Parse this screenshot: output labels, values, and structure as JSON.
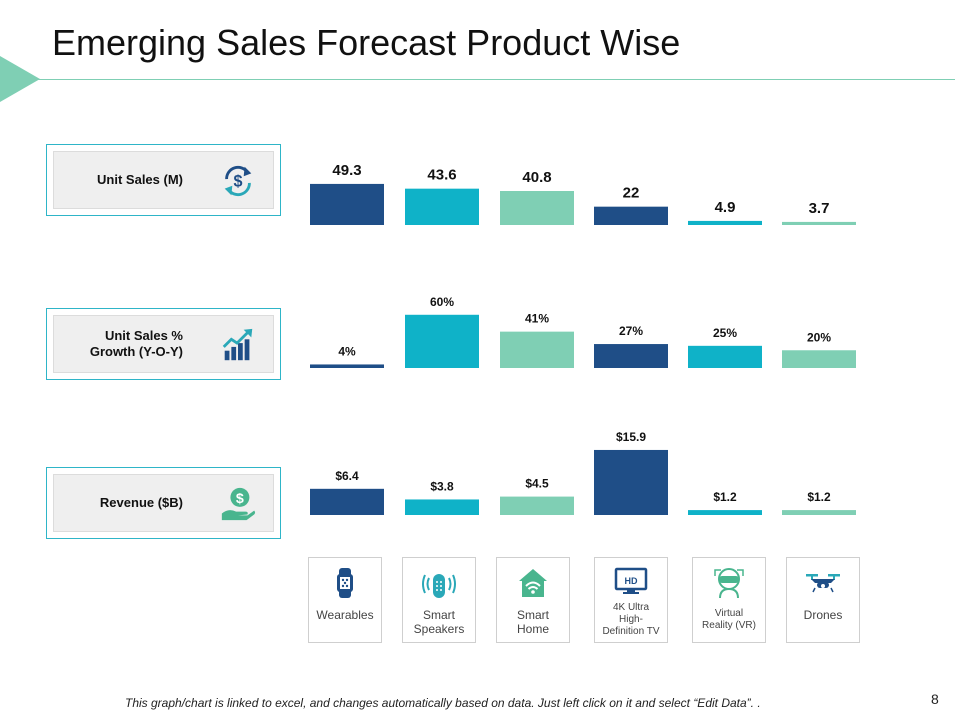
{
  "title": "Emerging Sales Forecast Product Wise",
  "rows": [
    {
      "label": "Unit Sales (M)",
      "icon": "dollar-cycle-icon"
    },
    {
      "label": "Unit Sales %\nGrowth (Y-O-Y)",
      "icon": "growth-chart-icon"
    },
    {
      "label": "Revenue ($B)",
      "icon": "hand-money-icon"
    }
  ],
  "categories": [
    {
      "label": "Wearables",
      "icon": "smartwatch-icon"
    },
    {
      "label": "Smart\nSpeakers",
      "icon": "smart-speaker-icon"
    },
    {
      "label": "Smart\nHome",
      "icon": "smart-home-icon"
    },
    {
      "label": "4K Ultra\nHigh-\nDefinition TV",
      "icon": "hd-tv-icon"
    },
    {
      "label": "Virtual\nReality (VR)",
      "icon": "vr-headset-icon"
    },
    {
      "label": "Drones",
      "icon": "drone-icon"
    }
  ],
  "chart_data": [
    {
      "type": "bar",
      "title": "Unit Sales (M)",
      "categories": [
        "Wearables",
        "Smart Speakers",
        "Smart Home",
        "4K Ultra High-Definition TV",
        "Virtual Reality (VR)",
        "Drones"
      ],
      "values": [
        49.3,
        43.6,
        40.8,
        22,
        4.9,
        3.7
      ],
      "labels": [
        "49.3",
        "43.6",
        "40.8",
        "22",
        "4.9",
        "3.7"
      ],
      "ylim": [
        0,
        120
      ]
    },
    {
      "type": "bar",
      "title": "Unit Sales % Growth (Y-O-Y)",
      "categories": [
        "Wearables",
        "Smart Speakers",
        "Smart Home",
        "4K Ultra High-Definition TV",
        "Virtual Reality (VR)",
        "Drones"
      ],
      "values": [
        4,
        60,
        41,
        27,
        25,
        20
      ],
      "labels": [
        "4%",
        "60%",
        "41%",
        "27%",
        "25%",
        "20%"
      ],
      "ylim": [
        0,
        115
      ]
    },
    {
      "type": "bar",
      "title": "Revenue ($B)",
      "categories": [
        "Wearables",
        "Smart Speakers",
        "Smart Home",
        "4K Ultra High-Definition TV",
        "Virtual Reality (VR)",
        "Drones"
      ],
      "values": [
        6.4,
        3.8,
        4.5,
        15.9,
        1.2,
        1.2
      ],
      "labels": [
        "$6.4",
        "$3.8",
        "$4.5",
        "$15.9",
        "$1.2",
        "$1.2"
      ],
      "ylim": [
        0,
        22
      ]
    }
  ],
  "colors": {
    "series": [
      "#1f4e87",
      "#0fb2c8",
      "#7fcfb4",
      "#1f4e87",
      "#0fb2c8",
      "#7fcfb4"
    ],
    "accent": "#7fcfb4",
    "border": "#2eb5c8",
    "icon_blue": "#1f4e87",
    "icon_teal": "#2aa8b8",
    "icon_green": "#49b58e"
  },
  "footer": {
    "note": "This graph/chart is linked to excel, and changes automatically based on data. Just left click on it and select “Edit Data”. .",
    "page_number": "8"
  }
}
